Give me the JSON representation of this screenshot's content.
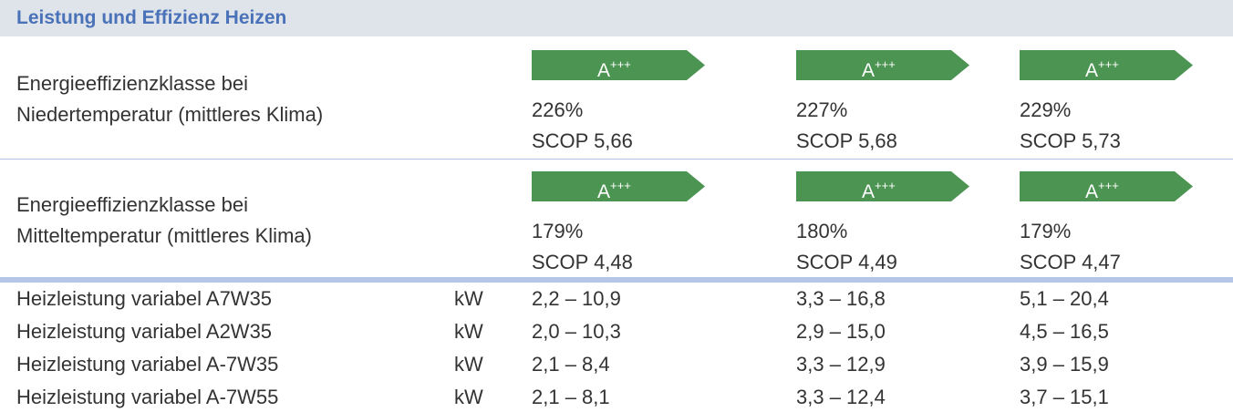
{
  "header": {
    "title": "Leistung und Effizienz Heizen"
  },
  "sections": [
    {
      "label_lines": [
        "Energieeffizienzklasse bei",
        "Niedertemperatur (mittleres Klima)"
      ],
      "cells": [
        {
          "class": "A",
          "sup": "+++",
          "percent": "226%",
          "scop": "SCOP 5,66"
        },
        {
          "class": "A",
          "sup": "+++",
          "percent": "227%",
          "scop": "SCOP 5,68"
        },
        {
          "class": "A",
          "sup": "+++",
          "percent": "229%",
          "scop": "SCOP 5,73"
        }
      ]
    },
    {
      "label_lines": [
        "Energieeffizienzklasse bei",
        "Mitteltemperatur (mittleres Klima)"
      ],
      "cells": [
        {
          "class": "A",
          "sup": "+++",
          "percent": "179%",
          "scop": "SCOP 4,48"
        },
        {
          "class": "A",
          "sup": "+++",
          "percent": "180%",
          "scop": "SCOP 4,49"
        },
        {
          "class": "A",
          "sup": "+++",
          "percent": "179%",
          "scop": "SCOP 4,47"
        }
      ]
    }
  ],
  "rows": [
    {
      "label": "Heizleistung variabel A7W35",
      "unit": "kW",
      "values": [
        "2,2 – 10,9",
        "3,3 – 16,8",
        "5,1 – 20,4"
      ]
    },
    {
      "label": "Heizleistung variabel A2W35",
      "unit": "kW",
      "values": [
        "2,0 – 10,3",
        "2,9 – 15,0",
        "4,5 – 16,5"
      ]
    },
    {
      "label": "Heizleistung variabel A-7W35",
      "unit": "kW",
      "values": [
        "2,1 – 8,4",
        "3,3 – 12,9",
        "3,9 – 15,9"
      ]
    },
    {
      "label": "Heizleistung variabel A-7W55",
      "unit": "kW",
      "values": [
        "2,1 – 8,1",
        "3,3 – 12,4",
        "3,7 – 15,1"
      ]
    }
  ]
}
